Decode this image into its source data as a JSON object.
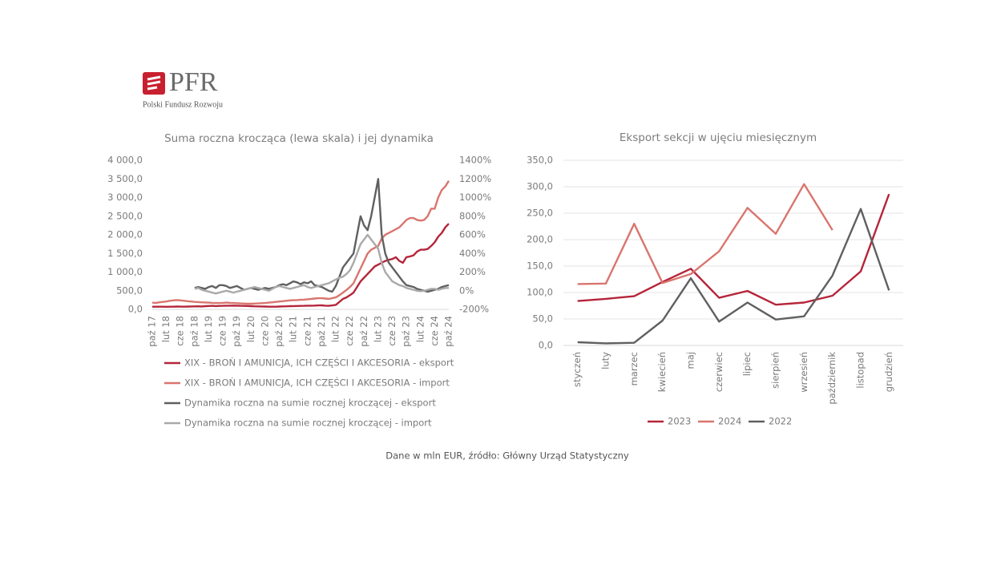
{
  "logo": {
    "name": "PFR",
    "subtitle": "Polski Fundusz Rozwoju"
  },
  "source": "Dane w mln EUR, źródło: Główny Urząd Statystyczny",
  "chart_data": [
    {
      "type": "line",
      "title": "Suma roczna krocząca (lewa skala) i jej dynamika",
      "categories": [
        "paź 17",
        null,
        null,
        null,
        "lut 18",
        null,
        null,
        null,
        "cze 18",
        null,
        null,
        null,
        "paź 18",
        null,
        null,
        null,
        "lut 19",
        null,
        null,
        null,
        "cze 19",
        null,
        null,
        null,
        "paź 19",
        null,
        null,
        null,
        "lut 20",
        null,
        null,
        null,
        "cze 20",
        null,
        null,
        null,
        "paź 20",
        null,
        null,
        null,
        "lut 21",
        null,
        null,
        null,
        "cze 21",
        null,
        null,
        null,
        "paź 21",
        null,
        null,
        null,
        "lut 22",
        null,
        null,
        null,
        "cze 22",
        null,
        null,
        null,
        "paź 22",
        null,
        null,
        null,
        "lut 23",
        null,
        null,
        null,
        "cze 23",
        null,
        null,
        null,
        "paź 23",
        null,
        null,
        null,
        "lut 24",
        null,
        null,
        null,
        "cze 24",
        null,
        null,
        null,
        "paź 24"
      ],
      "ylim": [
        0,
        4000
      ],
      "yticks": [
        {
          "value": 0,
          "label": "0,0"
        },
        {
          "value": 500,
          "label": "500,0"
        },
        {
          "value": 1000,
          "label": "1 000,0"
        },
        {
          "value": 1500,
          "label": "1 500,0"
        },
        {
          "value": 2000,
          "label": "2 000,0"
        },
        {
          "value": 2500,
          "label": "2 500,0"
        },
        {
          "value": 3000,
          "label": "3 000,0"
        },
        {
          "value": 3500,
          "label": "3 500,0"
        },
        {
          "value": 4000,
          "label": "4 000,0"
        }
      ],
      "y2lim": [
        -200,
        1400
      ],
      "y2ticks": [
        {
          "value": -200,
          "label": "-200%"
        },
        {
          "value": 0,
          "label": "0%"
        },
        {
          "value": 200,
          "label": "200%"
        },
        {
          "value": 400,
          "label": "400%"
        },
        {
          "value": 600,
          "label": "600%"
        },
        {
          "value": 800,
          "label": "800%"
        },
        {
          "value": 1000,
          "label": "1000%"
        },
        {
          "value": 1200,
          "label": "1200%"
        },
        {
          "value": 1400,
          "label": "1400%"
        }
      ],
      "grid": false,
      "legend": "bottom",
      "series": [
        {
          "name": "XIX - BROŃ I AMUNICJA, ICH CZĘŚCI I AKCESORIA - eksport",
          "color": "#b5253a",
          "values": [
            70,
            70,
            72,
            70,
            68,
            70,
            72,
            75,
            73,
            72,
            75,
            78,
            80,
            82,
            78,
            85,
            90,
            95,
            88,
            92,
            95,
            100,
            98,
            102,
            100,
            95,
            92,
            90,
            85,
            82,
            80,
            78,
            75,
            72,
            70,
            72,
            75,
            80,
            82,
            85,
            88,
            90,
            92,
            95,
            98,
            100,
            102,
            105,
            108,
            100,
            95,
            105,
            120,
            200,
            280,
            320,
            380,
            450,
            600,
            750,
            850,
            950,
            1050,
            1150,
            1200,
            1250,
            1300,
            1330,
            1350,
            1400,
            1300,
            1250,
            1400,
            1420,
            1450,
            1550,
            1600,
            1600,
            1620,
            1700,
            1800,
            1950,
            2050,
            2200,
            2300
          ]
        },
        {
          "name": "XIX - BROŃ I AMUNICJA, ICH CZĘŚCI I AKCESORIA - import",
          "color": "#d9756f",
          "values": [
            180,
            170,
            190,
            200,
            210,
            230,
            240,
            250,
            240,
            230,
            220,
            210,
            200,
            195,
            190,
            185,
            180,
            175,
            170,
            170,
            175,
            180,
            175,
            170,
            165,
            160,
            155,
            150,
            150,
            155,
            160,
            165,
            170,
            180,
            190,
            200,
            210,
            220,
            230,
            240,
            245,
            250,
            255,
            260,
            270,
            280,
            290,
            300,
            300,
            290,
            280,
            300,
            320,
            380,
            450,
            520,
            600,
            700,
            900,
            1100,
            1300,
            1500,
            1600,
            1650,
            1700,
            1900,
            2000,
            2050,
            2100,
            2150,
            2200,
            2300,
            2400,
            2450,
            2450,
            2400,
            2380,
            2400,
            2500,
            2700,
            2700,
            3000,
            3200,
            3300,
            3450
          ]
        },
        {
          "name": "Dynamika roczna na sumie rocznej kroczącej - eksport",
          "color": "#5f6060",
          "axis": "y2",
          "values": [
            null,
            null,
            null,
            null,
            null,
            null,
            null,
            null,
            null,
            null,
            null,
            null,
            30,
            40,
            30,
            20,
            40,
            50,
            30,
            60,
            60,
            50,
            30,
            40,
            50,
            30,
            10,
            20,
            30,
            20,
            10,
            20,
            30,
            20,
            30,
            40,
            60,
            70,
            60,
            80,
            100,
            90,
            70,
            90,
            80,
            100,
            60,
            50,
            40,
            20,
            0,
            -10,
            50,
            150,
            250,
            300,
            350,
            400,
            600,
            800,
            700,
            650,
            800,
            1000,
            1200,
            600,
            400,
            300,
            250,
            200,
            150,
            100,
            60,
            50,
            40,
            20,
            10,
            0,
            -10,
            0,
            10,
            20,
            40,
            50,
            60
          ]
        },
        {
          "name": "Dynamika roczna na sumie rocznej kroczącej - import",
          "color": "#a9a9a9",
          "axis": "y2",
          "values": [
            null,
            null,
            null,
            null,
            null,
            null,
            null,
            null,
            null,
            null,
            null,
            null,
            20,
            30,
            10,
            0,
            -10,
            -20,
            -30,
            -20,
            -10,
            0,
            -10,
            -20,
            -10,
            0,
            10,
            20,
            30,
            40,
            30,
            20,
            10,
            0,
            20,
            40,
            50,
            40,
            30,
            20,
            30,
            40,
            50,
            60,
            40,
            30,
            40,
            50,
            60,
            70,
            80,
            100,
            120,
            140,
            150,
            180,
            220,
            300,
            400,
            500,
            550,
            600,
            550,
            500,
            450,
            300,
            200,
            150,
            100,
            80,
            60,
            50,
            30,
            20,
            10,
            0,
            -5,
            0,
            10,
            20,
            20,
            10,
            20,
            30,
            30
          ]
        }
      ]
    },
    {
      "type": "line",
      "title": "Eksport sekcji w ujęciu miesięcznym",
      "categories": [
        "styczeń",
        "luty",
        "marzec",
        "kwiecień",
        "maj",
        "czerwiec",
        "lipiec",
        "sierpień",
        "wrzesień",
        "październik",
        "listopad",
        "grudzień"
      ],
      "ylim": [
        0,
        350
      ],
      "yticks": [
        {
          "value": 0,
          "label": "0,0"
        },
        {
          "value": 50,
          "label": "50,0"
        },
        {
          "value": 100,
          "label": "100,0"
        },
        {
          "value": 150,
          "label": "150,0"
        },
        {
          "value": 200,
          "label": "200,0"
        },
        {
          "value": 250,
          "label": "250,0"
        },
        {
          "value": 300,
          "label": "300,0"
        },
        {
          "value": 350,
          "label": "350,0"
        }
      ],
      "grid": true,
      "legend": "bottom",
      "series": [
        {
          "name": "2023",
          "color": "#b5253a",
          "values": [
            84,
            88,
            93,
            120,
            145,
            90,
            103,
            77,
            81,
            94,
            140,
            286
          ]
        },
        {
          "name": "2024",
          "color": "#d9756f",
          "values": [
            116,
            117,
            230,
            118,
            135,
            178,
            260,
            211,
            305,
            218,
            null,
            null
          ]
        },
        {
          "name": "2022",
          "color": "#5f6060",
          "values": [
            6,
            4,
            5,
            47,
            127,
            45,
            81,
            49,
            55,
            132,
            258,
            104
          ]
        }
      ]
    }
  ]
}
